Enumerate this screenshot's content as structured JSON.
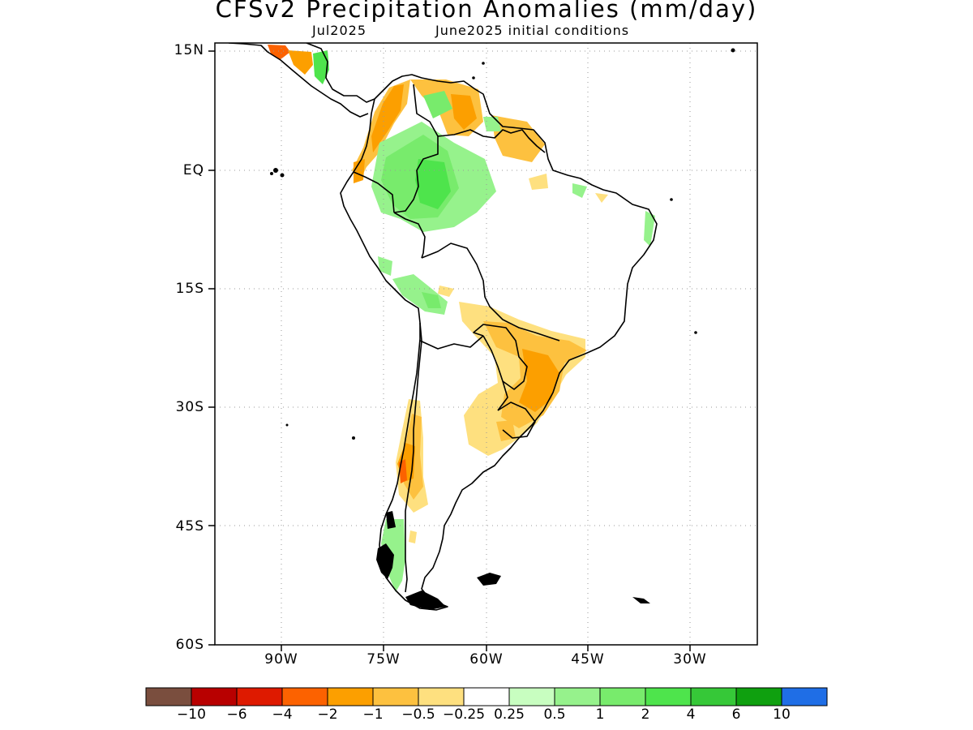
{
  "title": "CFSv2 Precipitation Anomalies (mm/day)",
  "subtitle_valid": "Jul2025",
  "subtitle_init": "June2025 initial conditions",
  "lat_labels": [
    "15N",
    "EQ",
    "15S",
    "30S",
    "45S",
    "60S"
  ],
  "lon_labels": [
    "90W",
    "75W",
    "60W",
    "45W",
    "30W"
  ],
  "colorbar": {
    "colors": [
      "#7a4e3e",
      "#b80000",
      "#de1a00",
      "#fc6200",
      "#fc9f00",
      "#fdc13f",
      "#fee07f",
      "#ffffff",
      "#c8fec0",
      "#96f28c",
      "#78eb6c",
      "#4ee44c",
      "#36c838",
      "#0fa00f",
      "#1f6ee6"
    ],
    "labels": [
      "−10",
      "−6",
      "−4",
      "−2",
      "−1",
      "−0.5",
      "−0.25",
      "0.25",
      "0.5",
      "1",
      "2",
      "4",
      "6",
      "10"
    ]
  },
  "map_data": {
    "extent": {
      "lon_min": -100,
      "lon_max": -20,
      "lat_min": -60,
      "lat_max": 15
    },
    "grid_lines_dotted": true
  }
}
